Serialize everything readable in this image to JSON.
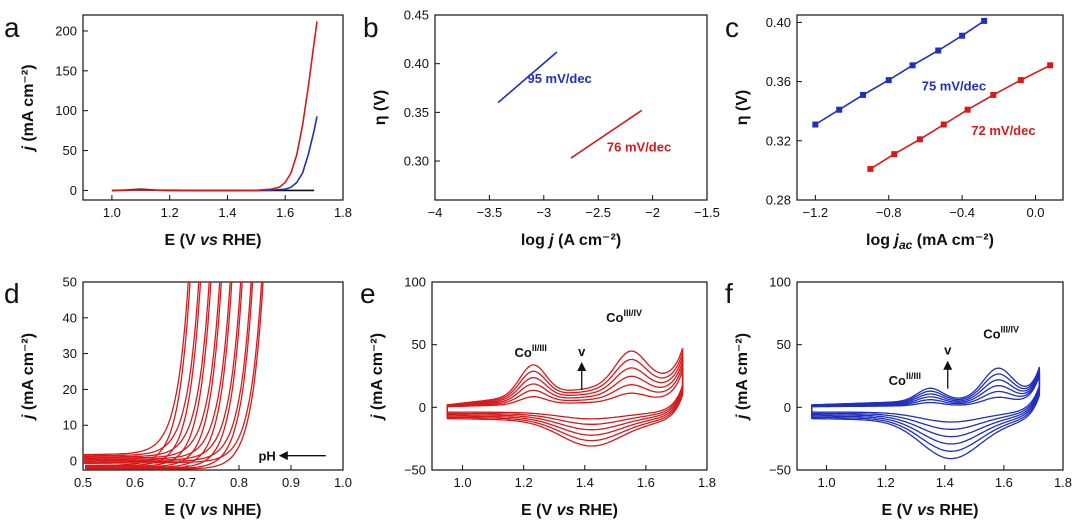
{
  "colors": {
    "red": "#d7191c",
    "blue": "#1f2fbf",
    "black": "#111111"
  },
  "chart_data": [
    {
      "id": "a",
      "letter": "a",
      "type": "line",
      "xlabel": "E (V vs RHE)",
      "ylabel": "j (mA cm⁻²)",
      "xlim": [
        0.9,
        1.8
      ],
      "ylim": [
        -12,
        220
      ],
      "xticks": [
        "1.0",
        "1.2",
        "1.4",
        "1.6",
        "1.8"
      ],
      "yticks": [
        "0",
        "50",
        "100",
        "150",
        "200"
      ],
      "series": [
        {
          "name": "black",
          "color": "black",
          "x": [
            1.0,
            1.05,
            1.1,
            1.15,
            1.3,
            1.5,
            1.6,
            1.7
          ],
          "y": [
            0,
            0.5,
            1.5,
            0.5,
            0,
            0,
            0,
            0
          ]
        },
        {
          "name": "blue",
          "color": "blue",
          "x": [
            1.0,
            1.1,
            1.2,
            1.4,
            1.5,
            1.55,
            1.6,
            1.62,
            1.64,
            1.66,
            1.68,
            1.7,
            1.71
          ],
          "y": [
            0,
            0.5,
            0,
            0,
            0,
            0.3,
            1.5,
            4,
            10,
            22,
            45,
            75,
            93
          ]
        },
        {
          "name": "red",
          "color": "red",
          "x": [
            1.0,
            1.1,
            1.2,
            1.4,
            1.5,
            1.55,
            1.58,
            1.6,
            1.62,
            1.64,
            1.66,
            1.68,
            1.7,
            1.71
          ],
          "y": [
            0,
            0.5,
            0,
            0,
            0.2,
            1.5,
            4,
            10,
            22,
            45,
            82,
            130,
            185,
            212
          ]
        }
      ]
    },
    {
      "id": "b",
      "letter": "b",
      "type": "line",
      "xlabel": "log j (A cm⁻²)",
      "ylabel": "η (V)",
      "xlim": [
        -4.0,
        -1.5
      ],
      "ylim": [
        0.26,
        0.45
      ],
      "xticks": [
        "−4",
        "−3.5",
        "−3",
        "−2.5",
        "−2",
        "−1.5"
      ],
      "yticks": [
        "0.30",
        "0.35",
        "0.40",
        "0.45"
      ],
      "series": [
        {
          "name": "blue",
          "color": "blue",
          "x": [
            -3.42,
            -2.88
          ],
          "y": [
            0.36,
            0.412
          ]
        },
        {
          "name": "red",
          "color": "red",
          "x": [
            -2.75,
            -2.1
          ],
          "y": [
            0.303,
            0.352
          ]
        }
      ],
      "annotations": [
        {
          "text": "95 mV/dec",
          "color": "blue",
          "x": -3.15,
          "y": 0.38
        },
        {
          "text": "76 mV/dec",
          "color": "red",
          "x": -2.42,
          "y": 0.31
        }
      ]
    },
    {
      "id": "c",
      "letter": "c",
      "type": "line",
      "xlabel": "log j_ac (mA cm⁻²)",
      "ylabel": "η (V)",
      "xlim": [
        -1.3,
        0.15
      ],
      "ylim": [
        0.28,
        0.405
      ],
      "xticks": [
        "−1.2",
        "−0.8",
        "−0.4",
        "0.0"
      ],
      "yticks": [
        "0.28",
        "0.32",
        "0.36",
        "0.40"
      ],
      "series": [
        {
          "name": "blue",
          "color": "blue",
          "marker": "square",
          "x": [
            -1.2,
            -1.07,
            -0.94,
            -0.8,
            -0.67,
            -0.53,
            -0.4,
            -0.28
          ],
          "y": [
            0.331,
            0.341,
            0.351,
            0.361,
            0.371,
            0.381,
            0.391,
            0.401
          ]
        },
        {
          "name": "red",
          "color": "red",
          "marker": "square",
          "x": [
            -0.9,
            -0.77,
            -0.63,
            -0.5,
            -0.37,
            -0.23,
            -0.08,
            0.08
          ],
          "y": [
            0.301,
            0.311,
            0.321,
            0.331,
            0.341,
            0.351,
            0.361,
            0.371
          ]
        }
      ],
      "annotations": [
        {
          "text": "75 mV/dec",
          "color": "blue",
          "x": -0.62,
          "y": 0.354
        },
        {
          "text": "72 mV/dec",
          "color": "red",
          "x": -0.35,
          "y": 0.324
        }
      ]
    },
    {
      "id": "d",
      "letter": "d",
      "type": "line",
      "xlabel": "E (V vs NHE)",
      "ylabel": "j (mA cm⁻²)",
      "xlim": [
        0.5,
        1.0
      ],
      "ylim": [
        -2.5,
        50
      ],
      "xticks": [
        "0.5",
        "0.6",
        "0.7",
        "0.8",
        "0.9",
        "1.0"
      ],
      "yticks": [
        "0",
        "10",
        "20",
        "30",
        "40",
        "50"
      ],
      "family": {
        "color": "red",
        "shifts": [
          0.77,
          0.79,
          0.81,
          0.83,
          0.85,
          0.87,
          0.89,
          0.91
        ]
      },
      "annotations": [
        {
          "text": "pH",
          "color": "black",
          "x": 0.89,
          "y": 1.5
        }
      ]
    },
    {
      "id": "e",
      "letter": "e",
      "type": "line",
      "xlabel": "E (V vs RHE)",
      "ylabel": "j (mA cm⁻²)",
      "xlim": [
        0.9,
        1.8
      ],
      "ylim": [
        -50,
        100
      ],
      "xticks": [
        "1.0",
        "1.2",
        "1.4",
        "1.6",
        "1.8"
      ],
      "yticks": [
        "−50",
        "0",
        "50",
        "100"
      ],
      "family": {
        "color": "red",
        "scales": [
          0.25,
          0.4,
          0.55,
          0.7,
          0.85,
          1.0
        ],
        "peak1": 1.23,
        "peak2": 1.55
      },
      "annotations": [
        {
          "text": "Co",
          "sup": "II/III",
          "color": "black",
          "x": 1.17,
          "y": 40
        },
        {
          "text": "Co",
          "sup": "III/IV",
          "color": "black",
          "x": 1.47,
          "y": 68
        },
        {
          "text": "v",
          "color": "black",
          "x": 1.39,
          "y": 41
        }
      ]
    },
    {
      "id": "f",
      "letter": "f",
      "type": "line",
      "xlabel": "E (V vs RHE)",
      "ylabel": "j (mA cm⁻²)",
      "xlim": [
        0.9,
        1.8
      ],
      "ylim": [
        -50,
        100
      ],
      "xticks": [
        "1.0",
        "1.2",
        "1.4",
        "1.6",
        "1.8"
      ],
      "yticks": [
        "−50",
        "0",
        "50",
        "100"
      ],
      "family": {
        "color": "blue",
        "scales": [
          0.25,
          0.4,
          0.55,
          0.7,
          0.85,
          1.0
        ],
        "peak1": 1.35,
        "peak2": 1.58
      },
      "annotations": [
        {
          "text": "Co",
          "sup": "II/III",
          "color": "black",
          "x": 1.21,
          "y": 18
        },
        {
          "text": "Co",
          "sup": "III/IV",
          "color": "black",
          "x": 1.53,
          "y": 55
        },
        {
          "text": "v",
          "color": "black",
          "x": 1.41,
          "y": 42
        }
      ]
    }
  ]
}
